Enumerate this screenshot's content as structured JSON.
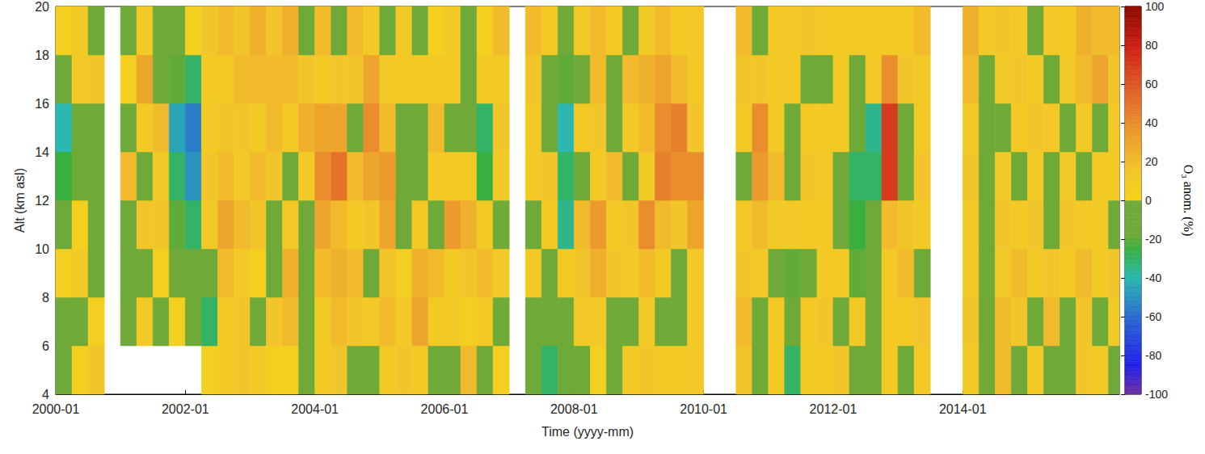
{
  "chart_data": {
    "type": "heatmap",
    "x_label": "Time (yyyy-mm)",
    "y_label": "Alt (km asl)",
    "grid": false,
    "xlim": [
      "2000-01",
      "2016-06"
    ],
    "xticks": [
      "2000-01",
      "2002-01",
      "2004-01",
      "2006-01",
      "2008-01",
      "2010-01",
      "2012-01",
      "2014-01"
    ],
    "ylim": [
      4,
      20
    ],
    "yticks": [
      4,
      6,
      8,
      10,
      12,
      14,
      16,
      18,
      20
    ],
    "y_bins": [
      4,
      6,
      8,
      10,
      12,
      14,
      16,
      18,
      20
    ],
    "x": [
      "2000-01",
      "2000-04",
      "2000-07",
      "2000-10",
      "2001-01",
      "2001-04",
      "2001-07",
      "2001-10",
      "2002-01",
      "2002-04",
      "2002-07",
      "2002-10",
      "2003-01",
      "2003-04",
      "2003-07",
      "2003-10",
      "2004-01",
      "2004-04",
      "2004-07",
      "2004-10",
      "2005-01",
      "2005-04",
      "2005-07",
      "2005-10",
      "2006-01",
      "2006-04",
      "2006-07",
      "2006-10",
      "2007-01",
      "2007-04",
      "2007-07",
      "2007-10",
      "2008-01",
      "2008-04",
      "2008-07",
      "2008-10",
      "2009-01",
      "2009-04",
      "2009-07",
      "2009-10",
      "2010-01",
      "2010-04",
      "2010-07",
      "2010-10",
      "2011-01",
      "2011-04",
      "2011-07",
      "2011-10",
      "2012-01",
      "2012-04",
      "2012-07",
      "2012-10",
      "2013-01",
      "2013-04",
      "2013-07",
      "2013-10",
      "2014-01",
      "2014-04",
      "2014-07",
      "2014-10",
      "2015-01",
      "2015-04",
      "2015-07",
      "2015-10",
      "2016-01",
      "2016-04"
    ],
    "cells": [
      [
        -10,
        -10,
        5,
        -10,
        -25,
        -40,
        -10,
        5
      ],
      [
        5,
        -10,
        10,
        5,
        -10,
        -10,
        10,
        10
      ],
      [
        15,
        5,
        -10,
        -10,
        -5,
        -5,
        15,
        -5
      ],
      [
        null,
        null,
        null,
        null,
        null,
        null,
        null,
        null
      ],
      [
        null,
        -5,
        -10,
        -5,
        20,
        -10,
        5,
        -10
      ],
      [
        null,
        10,
        -10,
        15,
        -10,
        10,
        30,
        10
      ],
      [
        null,
        -10,
        5,
        15,
        10,
        20,
        -10,
        -10
      ],
      [
        null,
        5,
        -10,
        -20,
        -30,
        -45,
        -20,
        -10
      ],
      [
        null,
        -10,
        -10,
        -30,
        -50,
        -55,
        -30,
        5
      ],
      [
        5,
        -30,
        -10,
        10,
        15,
        10,
        10,
        15
      ],
      [
        10,
        10,
        20,
        30,
        20,
        15,
        10,
        20
      ],
      [
        15,
        15,
        10,
        20,
        10,
        15,
        20,
        15
      ],
      [
        10,
        -10,
        5,
        15,
        20,
        10,
        20,
        25
      ],
      [
        5,
        15,
        -10,
        -10,
        15,
        20,
        20,
        15
      ],
      [
        5,
        20,
        25,
        10,
        -10,
        10,
        20,
        25
      ],
      [
        -10,
        -5,
        -10,
        -5,
        10,
        25,
        15,
        -10
      ],
      [
        10,
        10,
        20,
        30,
        40,
        30,
        10,
        20
      ],
      [
        15,
        20,
        25,
        20,
        50,
        30,
        15,
        -10
      ],
      [
        -10,
        15,
        20,
        10,
        20,
        -10,
        15,
        20
      ],
      [
        -5,
        10,
        -10,
        15,
        30,
        40,
        30,
        10
      ],
      [
        10,
        20,
        15,
        30,
        35,
        20,
        10,
        -10
      ],
      [
        15,
        10,
        5,
        -10,
        -10,
        -10,
        10,
        10
      ],
      [
        10,
        30,
        25,
        10,
        -10,
        -5,
        10,
        -10
      ],
      [
        -10,
        10,
        20,
        -10,
        10,
        20,
        10,
        5
      ],
      [
        -10,
        10,
        10,
        35,
        10,
        -10,
        10,
        10
      ],
      [
        20,
        5,
        15,
        25,
        10,
        -10,
        -10,
        -5
      ],
      [
        -10,
        10,
        20,
        10,
        -25,
        -30,
        10,
        5
      ],
      [
        5,
        -10,
        10,
        -10,
        10,
        15,
        10,
        20
      ],
      [
        null,
        null,
        null,
        null,
        null,
        null,
        null,
        null
      ],
      [
        -10,
        -10,
        10,
        -10,
        10,
        10,
        15,
        20
      ],
      [
        -30,
        -10,
        -10,
        10,
        15,
        -10,
        -10,
        10
      ],
      [
        -10,
        -10,
        10,
        -35,
        -30,
        -40,
        -20,
        -10
      ],
      [
        -10,
        10,
        15,
        20,
        -10,
        10,
        -10,
        10
      ],
      [
        5,
        10,
        25,
        35,
        10,
        15,
        20,
        20
      ],
      [
        -10,
        -10,
        15,
        10,
        20,
        -10,
        -10,
        10
      ],
      [
        10,
        -10,
        10,
        15,
        -10,
        10,
        20,
        -10
      ],
      [
        15,
        10,
        20,
        40,
        10,
        20,
        25,
        10
      ],
      [
        10,
        -10,
        10,
        20,
        45,
        40,
        30,
        20
      ],
      [
        10,
        -10,
        -10,
        15,
        40,
        45,
        20,
        10
      ],
      [
        10,
        10,
        10,
        30,
        40,
        15,
        10,
        10
      ],
      [
        null,
        null,
        null,
        null,
        null,
        null,
        null,
        null
      ],
      [
        null,
        null,
        null,
        null,
        null,
        null,
        null,
        null
      ],
      [
        15,
        20,
        15,
        10,
        -10,
        10,
        15,
        20
      ],
      [
        -10,
        -10,
        10,
        20,
        35,
        40,
        15,
        -10
      ],
      [
        10,
        10,
        -10,
        10,
        20,
        10,
        10,
        10
      ],
      [
        -30,
        -10,
        -20,
        10,
        -10,
        -10,
        10,
        10
      ],
      [
        10,
        10,
        -10,
        10,
        15,
        10,
        -10,
        15
      ],
      [
        10,
        15,
        10,
        10,
        10,
        10,
        -10,
        10
      ],
      [
        15,
        -10,
        10,
        -10,
        -10,
        10,
        10,
        10
      ],
      [
        -10,
        10,
        -20,
        -25,
        -30,
        -10,
        -10,
        10
      ],
      [
        -10,
        -10,
        -10,
        -10,
        -30,
        -35,
        10,
        10
      ],
      [
        10,
        10,
        10,
        20,
        70,
        70,
        40,
        10
      ],
      [
        -10,
        10,
        20,
        15,
        -10,
        -10,
        15,
        10
      ],
      [
        10,
        15,
        -10,
        10,
        15,
        10,
        10,
        20
      ],
      [
        null,
        null,
        null,
        null,
        null,
        null,
        null,
        null
      ],
      [
        null,
        null,
        null,
        null,
        null,
        null,
        null,
        null
      ],
      [
        10,
        15,
        10,
        10,
        15,
        10,
        20,
        25
      ],
      [
        -10,
        -10,
        -10,
        -10,
        -10,
        -10,
        -5,
        10
      ],
      [
        20,
        20,
        10,
        15,
        10,
        -10,
        10,
        15
      ],
      [
        -10,
        15,
        20,
        10,
        -10,
        10,
        15,
        10
      ],
      [
        10,
        -10,
        10,
        15,
        10,
        15,
        10,
        -10
      ],
      [
        -10,
        20,
        15,
        -10,
        -10,
        10,
        -10,
        10
      ],
      [
        -10,
        -10,
        10,
        15,
        10,
        -10,
        10,
        10
      ],
      [
        15,
        15,
        20,
        10,
        -10,
        10,
        20,
        25
      ],
      [
        10,
        -10,
        10,
        10,
        10,
        -10,
        30,
        20
      ],
      [
        -10,
        10,
        15,
        -10,
        10,
        10,
        15,
        20
      ]
    ],
    "colorbar": {
      "label": "O₃ anom. (%)",
      "range": [
        -100,
        100
      ],
      "ticks": [
        -100,
        -80,
        -60,
        -40,
        -20,
        0,
        20,
        40,
        60,
        80,
        100
      ]
    }
  }
}
